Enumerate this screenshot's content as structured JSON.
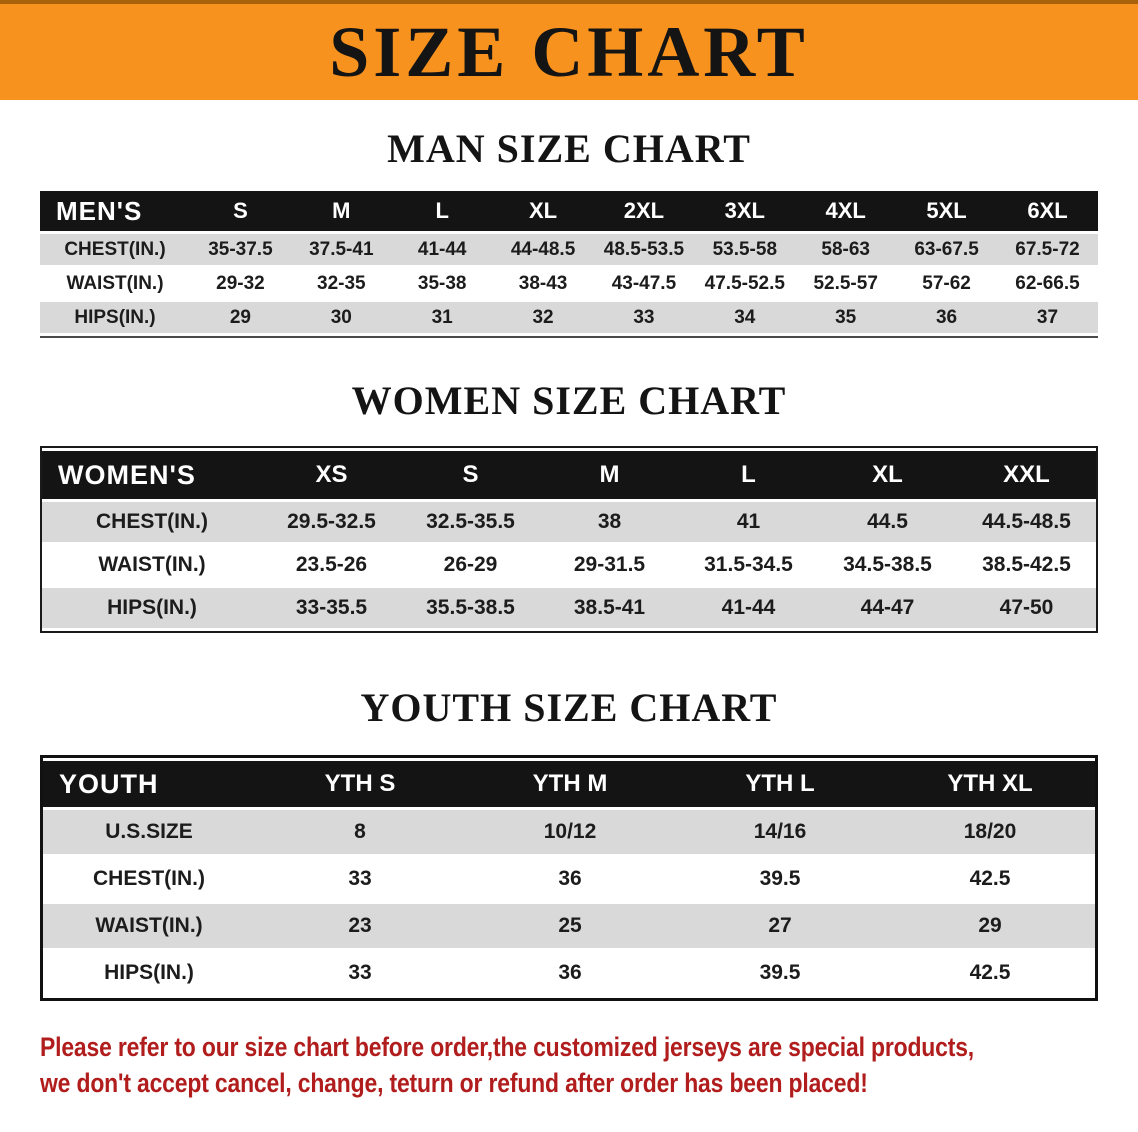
{
  "colors": {
    "orange": "#f7921e",
    "header-black": "#141414",
    "row-gray": "#d9d9d9",
    "red": "#b11d1d"
  },
  "banner": {
    "title": "SIZE CHART"
  },
  "tables": {
    "men": {
      "heading": "MAN SIZE CHART",
      "header": [
        "MEN'S",
        "S",
        "M",
        "L",
        "XL",
        "2XL",
        "3XL",
        "4XL",
        "5XL",
        "6XL"
      ],
      "rows": [
        [
          "CHEST(IN.)",
          "35-37.5",
          "37.5-41",
          "41-44",
          "44-48.5",
          "48.5-53.5",
          "53.5-58",
          "58-63",
          "63-67.5",
          "67.5-72"
        ],
        [
          "WAIST(IN.)",
          "29-32",
          "32-35",
          "35-38",
          "38-43",
          "43-47.5",
          "47.5-52.5",
          "52.5-57",
          "57-62",
          "62-66.5"
        ],
        [
          "HIPS(IN.)",
          "29",
          "30",
          "31",
          "32",
          "33",
          "34",
          "35",
          "36",
          "37"
        ]
      ]
    },
    "women": {
      "heading": "WOMEN SIZE CHART",
      "header": [
        "WOMEN'S",
        "XS",
        "S",
        "M",
        "L",
        "XL",
        "XXL"
      ],
      "rows": [
        [
          "CHEST(IN.)",
          "29.5-32.5",
          "32.5-35.5",
          "38",
          "41",
          "44.5",
          "44.5-48.5"
        ],
        [
          "WAIST(IN.)",
          "23.5-26",
          "26-29",
          "29-31.5",
          "31.5-34.5",
          "34.5-38.5",
          "38.5-42.5"
        ],
        [
          "HIPS(IN.)",
          "33-35.5",
          "35.5-38.5",
          "38.5-41",
          "41-44",
          "44-47",
          "47-50"
        ]
      ]
    },
    "youth": {
      "heading": "YOUTH SIZE CHART",
      "header": [
        "YOUTH",
        "YTH S",
        "YTH M",
        "YTH L",
        "YTH XL"
      ],
      "rows": [
        [
          "U.S.SIZE",
          "8",
          "10/12",
          "14/16",
          "18/20"
        ],
        [
          "CHEST(IN.)",
          "33",
          "36",
          "39.5",
          "42.5"
        ],
        [
          "WAIST(IN.)",
          "23",
          "25",
          "27",
          "29"
        ],
        [
          "HIPS(IN.)",
          "33",
          "36",
          "39.5",
          "42.5"
        ]
      ]
    }
  },
  "disclaimer": {
    "line1": "Please refer to our size chart before order,the customized jerseys are special products,",
    "line2": "we don't accept cancel, change, teturn or refund after order has been placed!"
  }
}
